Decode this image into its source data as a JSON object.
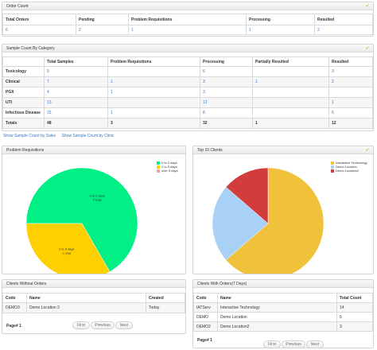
{
  "order_count": {
    "title": "Order Count",
    "headers": [
      "Total Orders",
      "Pending",
      "Problem Requisitions",
      "Processing",
      "Resulted"
    ],
    "values": [
      "6",
      "2",
      "1",
      "1",
      "2"
    ]
  },
  "sample_count": {
    "title": "Sample Count By Category",
    "headers": [
      "",
      "Total Samples",
      "Problem Requisitions",
      "Processing",
      "Partially Resulted",
      "Resulted"
    ],
    "rows": [
      {
        "category": "Toxicology",
        "total": "9",
        "problem": "",
        "processing": "6",
        "partial": "",
        "resulted": "3"
      },
      {
        "category": "Clinical",
        "total": "7",
        "problem": "1",
        "processing": "3",
        "partial": "1",
        "resulted": "2"
      },
      {
        "category": "PGX",
        "total": "4",
        "problem": "1",
        "processing": "3",
        "partial": "",
        "resulted": ""
      },
      {
        "category": "UTI",
        "total": "13",
        "problem": "",
        "processing": "12",
        "partial": "",
        "resulted": "1"
      },
      {
        "category": "Infectious Disease",
        "total": "15",
        "problem": "1",
        "processing": "8",
        "partial": "",
        "resulted": "6"
      }
    ],
    "totals": {
      "category": "Totals",
      "total": "48",
      "problem": "3",
      "processing": "32",
      "partial": "1",
      "resulted": "12"
    },
    "links": [
      "Show Sample Count by Sales",
      "Show Sample Count by Clinic"
    ]
  },
  "problem_requisitions": {
    "title": "Problem Requisitions",
    "chart_data": {
      "type": "pie",
      "slices": [
        {
          "label": "0 to 2 days",
          "count": "2",
          "count_label": "2 reqs",
          "value": 2,
          "color": "#00f086"
        },
        {
          "label": "2 to 5 days",
          "count": "1",
          "count_label": "1 reqs",
          "value": 1,
          "color": "#ffd000"
        },
        {
          "label": "over 5 days",
          "count": "0",
          "count_label": "",
          "value": 0,
          "color": "#f0a6a0"
        }
      ]
    }
  },
  "top_clients": {
    "title": "Top 10 Clients",
    "chart_data": {
      "type": "pie",
      "slices": [
        {
          "label": "Interactive Technology",
          "value": 14,
          "color": "#f0c23c"
        },
        {
          "label": "Demo Location",
          "value": 5,
          "color": "#a9d0f5"
        },
        {
          "label": "Demo Location2",
          "value": 3,
          "color": "#d23c3c"
        }
      ]
    }
  },
  "clients_without_orders": {
    "title": "Clients Without Orders",
    "headers": [
      "Code",
      "Name",
      "Created"
    ],
    "rows": [
      {
        "code": "DEMO3",
        "name": "Demo Location 3",
        "created": "Today"
      }
    ],
    "page_label": "Page# 1",
    "buttons": [
      "First",
      "Previous",
      "Next"
    ]
  },
  "clients_with_orders": {
    "title": "Clients With Orders(7 Days)",
    "headers": [
      "Code",
      "Name",
      "Total Count"
    ],
    "rows": [
      {
        "code": "IATServ",
        "name": "Interactive Technology",
        "count": "14"
      },
      {
        "code": "DEMO",
        "name": "Demo Location",
        "count": "5"
      },
      {
        "code": "DEMO2",
        "name": "Demo Location2",
        "count": "3"
      }
    ],
    "page_label": "Page# 1",
    "buttons": [
      "First",
      "Previous",
      "Next"
    ]
  },
  "icons": {
    "collapse": "chevron-double-icon"
  }
}
